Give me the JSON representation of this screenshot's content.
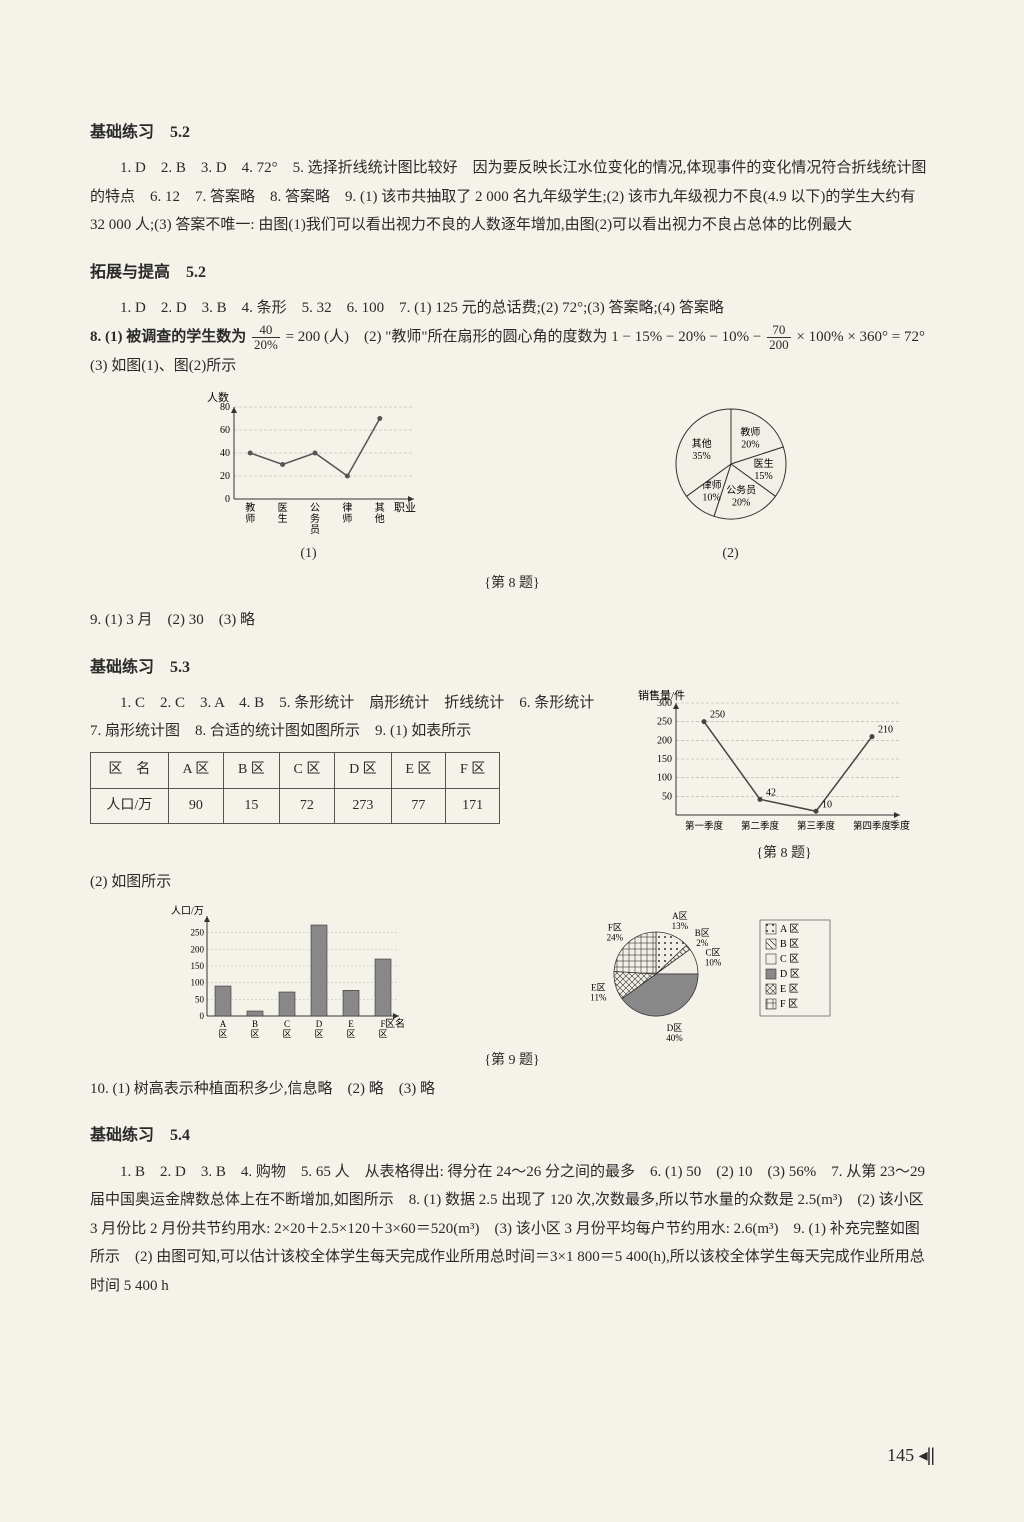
{
  "s52": {
    "title": "基础练习　5.2",
    "body": "1. D　2. B　3. D　4. 72°　5. 选择折线统计图比较好　因为要反映长江水位变化的情况,体现事件的变化情况符合折线统计图的特点　6. 12　7. 答案略　8. 答案略　9. (1) 该市共抽取了 2 000 名九年级学生;(2) 该市九年级视力不良(4.9 以下)的学生大约有 32 000 人;(3) 答案不唯一: 由图(1)我们可以看出视力不良的人数逐年增加,由图(2)可以看出视力不良占总体的比例最大"
  },
  "t52": {
    "title": "拓展与提高　5.2",
    "line1": "1. D　2. D　3. B　4. 条形　5. 32　6. 100　7. (1) 125 元的总话费;(2) 72°;(3) 答案略;(4) 答案略",
    "q8a": "8. (1) 被调查的学生数为 ",
    "q8b": " = 200 (人)　(2) \"教师\"所在扇形的圆心角的度数为 1 − 15% − 20% − 10% − ",
    "q8c": " × 100% × 360° = 72°　(3) 如图(1)、图(2)所示",
    "frac1": {
      "num": "40",
      "den": "20%"
    },
    "frac2": {
      "num": "70",
      "den": "200"
    },
    "line_chart": {
      "ylabel": "人数",
      "xlabel": "职业",
      "yticks": [
        0,
        20,
        40,
        60,
        80
      ],
      "categories": [
        "教师",
        "医生",
        "公务员",
        "律师",
        "其他"
      ],
      "values": [
        40,
        30,
        40,
        20,
        70
      ],
      "color": "#555",
      "bg": "#f2efe6",
      "cap": "(1)"
    },
    "pie_chart": {
      "slices": [
        {
          "label": "教师",
          "pct": 20,
          "color": "#f2efe6"
        },
        {
          "label": "医生",
          "pct": 15,
          "color": "#f2efe6"
        },
        {
          "label": "公务员",
          "pct": 20,
          "color": "#f2efe6"
        },
        {
          "label": "律师",
          "pct": 10,
          "color": "#f2efe6"
        },
        {
          "label": "其他",
          "pct": 35,
          "color": "#f2efe6"
        }
      ],
      "stroke": "#333",
      "cap": "(2)"
    },
    "figlabel": "{第 8 题}",
    "q9": "9. (1) 3 月　(2) 30　(3) 略"
  },
  "s53": {
    "title": "基础练习　5.3",
    "body": "1. C　2. C　3. A　4. B　5. 条形统计　扇形统计　折线统计　6. 条形统计　7. 扇形统计图　8. 合适的统计图如图所示　9. (1) 如表所示",
    "table": {
      "headers": [
        "区　名",
        "A 区",
        "B 区",
        "C 区",
        "D 区",
        "E 区",
        "F 区"
      ],
      "row": [
        "人口/万",
        "90",
        "15",
        "72",
        "273",
        "77",
        "171"
      ]
    },
    "line2_chart": {
      "ylabel": "销售量/件",
      "xlabel": "季度",
      "yticks": [
        50,
        100,
        150,
        200,
        250,
        300
      ],
      "categories": [
        "第一季度",
        "第二季度",
        "第三季度",
        "第四季度"
      ],
      "values": [
        250,
        42,
        10,
        210
      ],
      "color": "#444",
      "bg": "#f2efe6"
    },
    "fig8label": "{第 8 题}",
    "after_table": "(2) 如图所示",
    "bar_chart": {
      "ylabel": "人口/万",
      "xlabel": "区名",
      "yticks": [
        0,
        50,
        100,
        150,
        200,
        250
      ],
      "categories": [
        "A区",
        "B区",
        "C区",
        "D区",
        "E区",
        "F区"
      ],
      "values": [
        90,
        15,
        72,
        273,
        77,
        171
      ],
      "fill": "#888",
      "bg": "#f2efe6"
    },
    "pie2_chart": {
      "slices": [
        {
          "label": "A区",
          "pct": 13,
          "color": "#f2efe6",
          "pattern": "dots"
        },
        {
          "label": "B区",
          "pct": 2,
          "color": "#f2efe6",
          "pattern": "hatch"
        },
        {
          "label": "C区",
          "pct": 10,
          "color": "#f2efe6",
          "pattern": "none"
        },
        {
          "label": "D区",
          "pct": 40,
          "color": "#888",
          "pattern": "solid"
        },
        {
          "label": "E区",
          "pct": 11,
          "color": "#f2efe6",
          "pattern": "cross"
        },
        {
          "label": "F区",
          "pct": 24,
          "color": "#f2efe6",
          "pattern": "grid"
        }
      ],
      "legend": [
        "A 区",
        "B 区",
        "C 区",
        "D 区",
        "E 区",
        "F 区"
      ]
    },
    "fig9label": "{第 9 题}",
    "q10": "10. (1) 树高表示种植面积多少,信息略　(2) 略　(3) 略"
  },
  "s54": {
    "title": "基础练习　5.4",
    "body": "1. B　2. D　3. B　4. 购物　5. 65 人　从表格得出: 得分在 24～26 分之间的最多　6. (1) 50　(2) 10　(3) 56%　7. 从第 23～29 届中国奥运金牌数总体上在不断增加,如图所示　8. (1) 数据 2.5 出现了 120 次,次数最多,所以节水量的众数是 2.5(m³)　(2) 该小区 3 月份比 2 月份共节约用水: 2×20＋2.5×120＋3×60＝520(m³)　(3) 该小区 3 月份平均每户节约用水: 2.6(m³)　9. (1) 补充完整如图所示　(2) 由图可知,可以估计该校全体学生每天完成作业所用总时间＝3×1 800＝5 400(h),所以该校全体学生每天完成作业所用总时间 5 400 h"
  },
  "page_number": "145"
}
